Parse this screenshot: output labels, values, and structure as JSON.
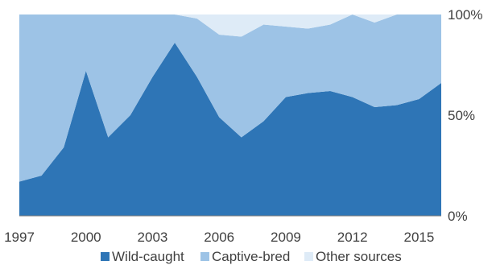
{
  "chart_data": {
    "type": "area",
    "stacked": true,
    "percent": true,
    "x": [
      1997,
      1998,
      1999,
      2000,
      2001,
      2002,
      2003,
      2004,
      2005,
      2006,
      2007,
      2008,
      2009,
      2010,
      2011,
      2012,
      2013,
      2014,
      2015,
      2016
    ],
    "series": [
      {
        "name": "Wild-caught",
        "color": "#2e75b6",
        "values": [
          17,
          20,
          34,
          72,
          39,
          50,
          69,
          86,
          69,
          49,
          39,
          47,
          59,
          61,
          62,
          59,
          54,
          55,
          58,
          66
        ]
      },
      {
        "name": "Captive-bred",
        "color": "#9dc3e6",
        "values": [
          83,
          80,
          66,
          28,
          61,
          50,
          31,
          14,
          29,
          41,
          50,
          48,
          35,
          32,
          33,
          41,
          42,
          45,
          42,
          34
        ]
      },
      {
        "name": "Other sources",
        "color": "#deebf7",
        "values": [
          0,
          0,
          0,
          0,
          0,
          0,
          0,
          0,
          2,
          10,
          11,
          5,
          6,
          7,
          5,
          0,
          4,
          0,
          0,
          0
        ]
      }
    ],
    "xticks": [
      "1997",
      "2000",
      "2003",
      "2006",
      "2009",
      "2012",
      "2015"
    ],
    "yticks": [
      "0%",
      "50%",
      "100%"
    ],
    "ylim": [
      0,
      100
    ],
    "xlim": [
      1997,
      2016
    ],
    "legend_position": "bottom",
    "grid": false
  }
}
